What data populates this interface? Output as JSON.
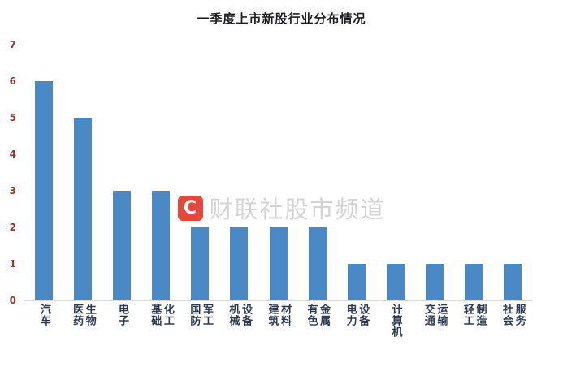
{
  "title": "一季度上市新股行业分布情况",
  "watermark": {
    "logo_letter": "C",
    "text": "财联社股市频道",
    "logo_color": "#e2382c",
    "text_color": "#d4d4d4"
  },
  "colors": {
    "bar": "#4a89c6",
    "y_tick_label": "#8a3a3a",
    "x_axis_label": "#2c3a50",
    "title": "#1d1d1f",
    "baseline": "#d9d9d9"
  },
  "chart_data": {
    "type": "bar",
    "title": "一季度上市新股行业分布情况",
    "categories": [
      "汽车",
      "医药生物",
      "电子",
      "基础化工",
      "国防军工",
      "机械设备",
      "建筑材料",
      "有色金属",
      "电力设备",
      "计算机",
      "交通运输",
      "轻工制造",
      "社会服务"
    ],
    "display_labels": [
      "汽车",
      "医药\n生物",
      "电子",
      "基础\n化工",
      "国防\n军工",
      "机械\n设备",
      "建筑\n材料",
      "有色\n金属",
      "电力\n设备",
      "计算机",
      "交通\n运输",
      "轻工\n制造",
      "社会\n服务"
    ],
    "values": [
      6,
      5,
      3,
      3,
      2,
      2,
      2,
      2,
      1,
      1,
      1,
      1,
      1
    ],
    "xlabel": "",
    "ylabel": "",
    "ylim": [
      0,
      7
    ],
    "y_ticks": [
      0,
      1,
      2,
      3,
      4,
      5,
      6,
      7
    ],
    "grid": false,
    "legend": false
  }
}
